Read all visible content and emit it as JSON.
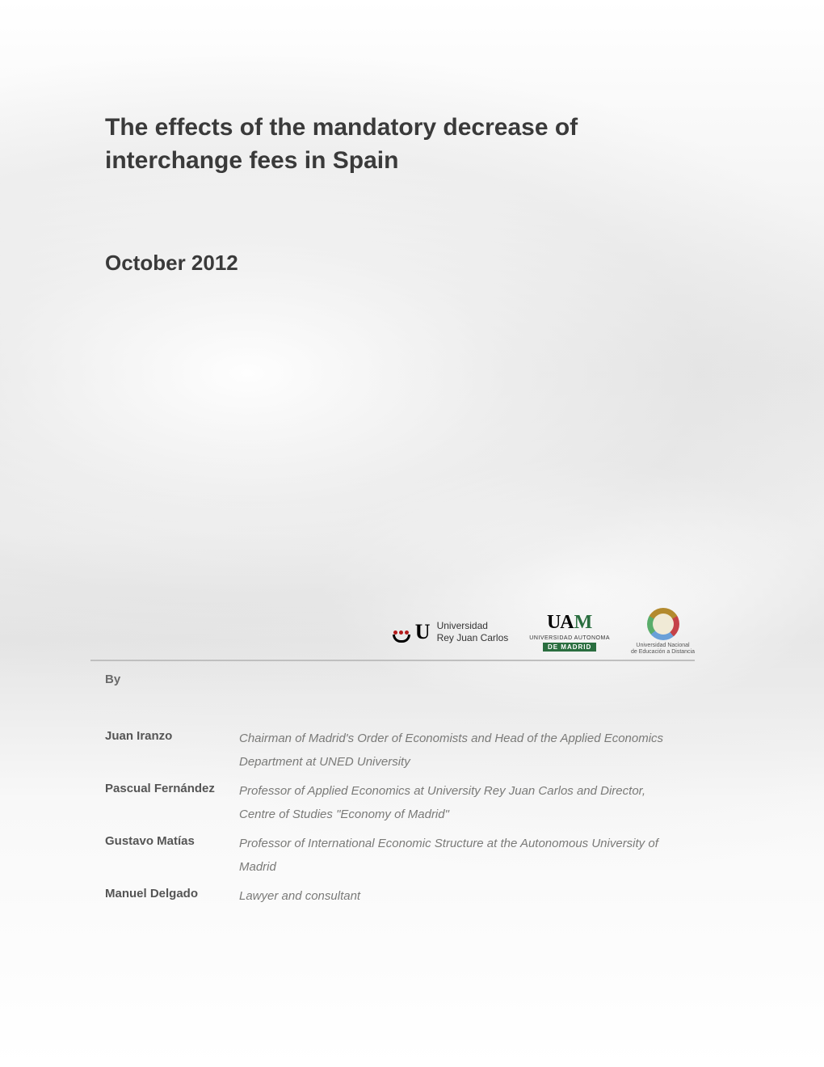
{
  "title": "The effects of the mandatory decrease of interchange fees in Spain",
  "date": "October 2012",
  "by_label": "By",
  "logos": {
    "urjc": {
      "line1": "Universidad",
      "line2": "Rey Juan Carlos"
    },
    "uam": {
      "line1": "UNIVERSIDAD AUTONOMA",
      "line2": "DE MADRID"
    },
    "uned": {
      "line1": "Universidad Nacional",
      "line2": "de Educación a Distancia"
    }
  },
  "authors": [
    {
      "name": "Juan Iranzo",
      "desc": "Chairman of Madrid's Order of Economists and Head of the Applied Economics Department at UNED University"
    },
    {
      "name": "Pascual Fernández",
      "desc": "Professor of Applied Economics at University Rey Juan Carlos and Director, Centre of Studies \"Economy of Madrid\""
    },
    {
      "name": "Gustavo Matías",
      "desc": "Professor of International Economic Structure at the Autonomous University of Madrid"
    },
    {
      "name": "Manuel Delgado",
      "desc": "Lawyer and consultant"
    }
  ],
  "colors": {
    "text_dark": "#3a3a3a",
    "text_muted": "#6a6a6a",
    "text_desc": "#7a7a78",
    "divider": "#bfbfbf",
    "urjc_red": "#b31b1b",
    "uam_green": "#2a6e3f"
  }
}
